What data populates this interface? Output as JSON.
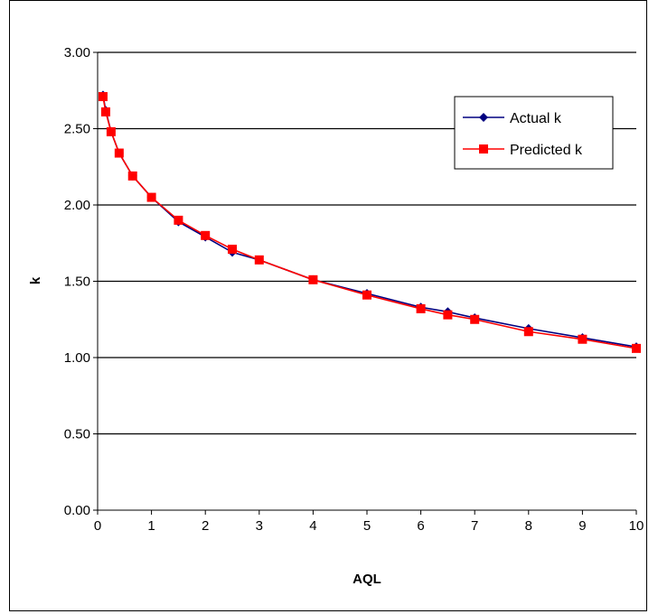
{
  "chart_data": {
    "type": "line",
    "title": "",
    "xlabel": "AQL",
    "ylabel": "k",
    "xlim": [
      0,
      10
    ],
    "ylim": [
      0,
      3
    ],
    "x_ticks": [
      "0",
      "1",
      "2",
      "3",
      "4",
      "5",
      "6",
      "7",
      "8",
      "9",
      "10"
    ],
    "y_ticks": [
      "0.00",
      "0.50",
      "1.00",
      "1.50",
      "2.00",
      "2.50",
      "3.00"
    ],
    "grid": "horizontal",
    "legend_position": "top-right",
    "series": [
      {
        "name": "Actual k",
        "color": "#000080",
        "marker": "diamond",
        "points": [
          [
            0.1,
            2.72
          ],
          [
            0.15,
            2.62
          ],
          [
            0.25,
            2.48
          ],
          [
            0.4,
            2.34
          ],
          [
            0.65,
            2.19
          ],
          [
            1.0,
            2.05
          ],
          [
            1.5,
            1.89
          ],
          [
            2.0,
            1.79
          ],
          [
            2.5,
            1.69
          ],
          [
            3.0,
            1.64
          ],
          [
            4.0,
            1.51
          ],
          [
            5.0,
            1.42
          ],
          [
            6.0,
            1.33
          ],
          [
            6.5,
            1.3
          ],
          [
            7.0,
            1.26
          ],
          [
            8.0,
            1.19
          ],
          [
            9.0,
            1.13
          ],
          [
            10.0,
            1.07
          ]
        ]
      },
      {
        "name": "Predicted k",
        "color": "#ff0000",
        "marker": "square",
        "points": [
          [
            0.1,
            2.71
          ],
          [
            0.15,
            2.61
          ],
          [
            0.25,
            2.48
          ],
          [
            0.4,
            2.34
          ],
          [
            0.65,
            2.19
          ],
          [
            1.0,
            2.05
          ],
          [
            1.5,
            1.9
          ],
          [
            2.0,
            1.8
          ],
          [
            2.5,
            1.71
          ],
          [
            3.0,
            1.64
          ],
          [
            4.0,
            1.51
          ],
          [
            5.0,
            1.41
          ],
          [
            6.0,
            1.32
          ],
          [
            6.5,
            1.28
          ],
          [
            7.0,
            1.25
          ],
          [
            8.0,
            1.17
          ],
          [
            9.0,
            1.12
          ],
          [
            10.0,
            1.06
          ]
        ]
      }
    ]
  }
}
